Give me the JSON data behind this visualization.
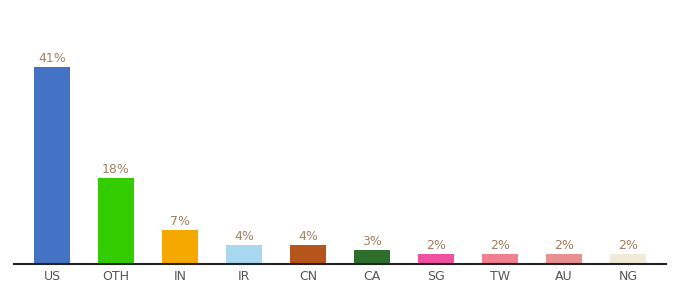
{
  "categories": [
    "US",
    "OTH",
    "IN",
    "IR",
    "CN",
    "CA",
    "SG",
    "TW",
    "AU",
    "NG"
  ],
  "values": [
    41,
    18,
    7,
    4,
    4,
    3,
    2,
    2,
    2,
    2
  ],
  "bar_colors": [
    "#4472c4",
    "#33cc00",
    "#f5a800",
    "#a8d8f0",
    "#b5541b",
    "#2d6e2d",
    "#f050a0",
    "#f08090",
    "#e89090",
    "#f0ead8"
  ],
  "labels": [
    "41%",
    "18%",
    "7%",
    "4%",
    "4%",
    "3%",
    "2%",
    "2%",
    "2%",
    "2%"
  ],
  "label_color": "#a08060",
  "ylim": [
    0,
    50
  ],
  "background_color": "#ffffff",
  "label_fontsize": 9,
  "tick_fontsize": 9,
  "bar_width": 0.55
}
